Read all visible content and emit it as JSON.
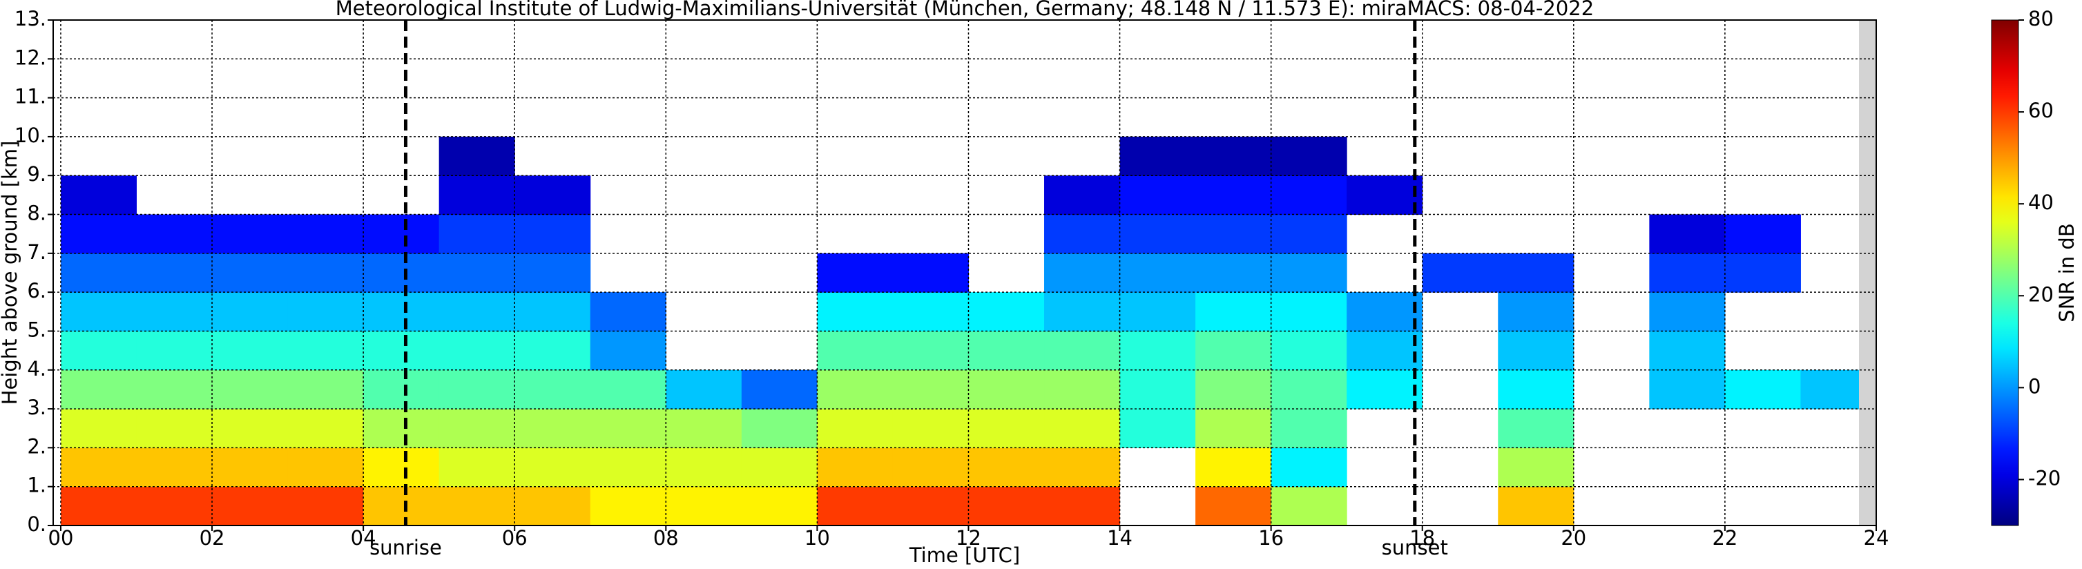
{
  "chart_data": {
    "type": "heatmap",
    "title": "Meteorological Institute of Ludwig-Maximilians-Universität (München, Germany; 48.148 N / 11.573 E):    miraMACS: 08-04-2022",
    "x_label": "Time [UTC]",
    "y_label": "Height above ground [km]",
    "colorbar_label": "SNR in dB",
    "colormap": "jet",
    "xlim": [
      -0.1,
      24
    ],
    "ylim": [
      0,
      13
    ],
    "clim": [
      -30,
      80
    ],
    "xticks": [
      {
        "value": 0,
        "label": "00"
      },
      {
        "value": 2,
        "label": "02"
      },
      {
        "value": 4,
        "label": "04"
      },
      {
        "value": 6,
        "label": "06"
      },
      {
        "value": 8,
        "label": "08"
      },
      10,
      12,
      14,
      16,
      18,
      20,
      22,
      24
    ],
    "yticks": [
      {
        "value": 0,
        "label": "0."
      },
      {
        "value": 1,
        "label": "1."
      },
      {
        "value": 2,
        "label": "2."
      },
      {
        "value": 3,
        "label": "3."
      },
      {
        "value": 4,
        "label": "4."
      },
      {
        "value": 5,
        "label": "5."
      },
      {
        "value": 6,
        "label": "6."
      },
      {
        "value": 7,
        "label": "7."
      },
      {
        "value": 8,
        "label": "8."
      },
      {
        "value": 9,
        "label": "9."
      },
      {
        "value": 10,
        "label": "10."
      },
      {
        "value": 11,
        "label": "11."
      },
      {
        "value": 12,
        "label": "12."
      },
      {
        "value": 13,
        "label": "13."
      }
    ],
    "cticks": [
      -20,
      0,
      20,
      40,
      60,
      80
    ],
    "grid": true,
    "markers": [
      {
        "label": "sunrise",
        "x": 4.56
      },
      {
        "label": "sunset",
        "x": 17.9
      }
    ],
    "xbins": [
      0,
      1,
      2,
      3,
      4,
      5,
      6,
      7,
      8,
      9,
      10,
      11,
      12,
      13,
      14,
      15,
      16,
      17,
      18,
      19,
      20,
      21,
      22,
      23,
      24
    ],
    "ybins": [
      0,
      1,
      2,
      3,
      4,
      5,
      6,
      7,
      8,
      9,
      10
    ],
    "values": [
      [
        60,
        60,
        60,
        60,
        45,
        45,
        45,
        40,
        40,
        40,
        60,
        60,
        60,
        60,
        null,
        55,
        30,
        null,
        null,
        45,
        null,
        null,
        null,
        null
      ],
      [
        45,
        45,
        45,
        45,
        40,
        35,
        35,
        35,
        35,
        35,
        45,
        45,
        45,
        45,
        null,
        40,
        10,
        null,
        null,
        30,
        null,
        null,
        null,
        null
      ],
      [
        35,
        35,
        35,
        35,
        30,
        30,
        30,
        30,
        30,
        25,
        35,
        35,
        35,
        35,
        15,
        30,
        20,
        null,
        null,
        20,
        null,
        null,
        null,
        null
      ],
      [
        25,
        25,
        25,
        25,
        20,
        20,
        20,
        20,
        5,
        -5,
        28,
        28,
        28,
        28,
        15,
        25,
        20,
        10,
        null,
        10,
        null,
        5,
        10,
        5
      ],
      [
        15,
        15,
        15,
        15,
        15,
        15,
        15,
        0,
        null,
        null,
        20,
        20,
        20,
        20,
        15,
        20,
        15,
        5,
        null,
        5,
        null,
        5,
        null,
        null
      ],
      [
        5,
        5,
        5,
        5,
        5,
        5,
        5,
        -5,
        null,
        null,
        10,
        10,
        10,
        5,
        5,
        10,
        10,
        0,
        null,
        0,
        null,
        0,
        null,
        null
      ],
      [
        -5,
        -5,
        -5,
        -5,
        -5,
        -5,
        -5,
        null,
        null,
        null,
        -15,
        -15,
        null,
        0,
        0,
        0,
        0,
        null,
        -10,
        -10,
        null,
        -10,
        -10,
        null
      ],
      [
        -15,
        -15,
        -15,
        -15,
        -15,
        -10,
        -10,
        null,
        null,
        null,
        null,
        null,
        null,
        -10,
        -10,
        -10,
        -10,
        null,
        null,
        null,
        null,
        -20,
        -15,
        null
      ],
      [
        -20,
        null,
        null,
        null,
        null,
        -20,
        -20,
        null,
        null,
        null,
        null,
        null,
        null,
        -20,
        -15,
        -15,
        -15,
        -20,
        null,
        null,
        null,
        null,
        null,
        null
      ],
      [
        null,
        null,
        null,
        null,
        null,
        -25,
        null,
        null,
        null,
        null,
        null,
        null,
        null,
        null,
        -25,
        -25,
        -25,
        null,
        null,
        null,
        null,
        null,
        null,
        null
      ]
    ]
  }
}
